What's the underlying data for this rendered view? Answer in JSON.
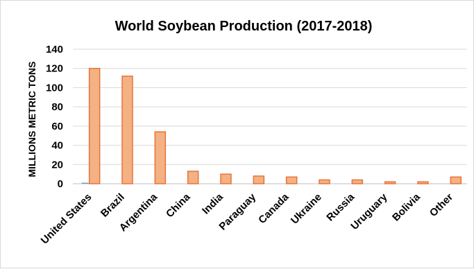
{
  "chart_data": {
    "type": "bar",
    "title": "World Soybean Production (2017-2018)",
    "xlabel": "",
    "ylabel": "MILLIONS METRIC TONS",
    "ylim": [
      0,
      140
    ],
    "yticks": [
      0,
      20,
      40,
      60,
      80,
      100,
      120,
      140
    ],
    "grid": true,
    "categories": [
      "United States",
      "Brazil",
      "Argentina",
      "China",
      "India",
      "Paraguay",
      "Canada",
      "Ukraine",
      "Russia",
      "Uruguary",
      "Bolivia",
      "Other"
    ],
    "series": [
      {
        "color": "#5b9bd5",
        "values": [
          1,
          0,
          0,
          0,
          0,
          0,
          0,
          0,
          0,
          0,
          0,
          0
        ]
      },
      {
        "color": "#f4b183",
        "edge_color": "#e8733a",
        "values": [
          120,
          112,
          54,
          13,
          10,
          8,
          7,
          4,
          4,
          2,
          2,
          7
        ]
      }
    ]
  }
}
